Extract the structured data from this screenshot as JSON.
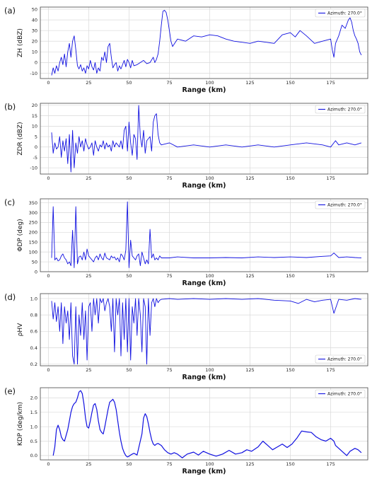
{
  "colors": {
    "series": "#1010e0",
    "grid": "#d9d9d9",
    "axis": "#444444"
  },
  "x_axis": {
    "label": "Range (km)",
    "ticks": [
      "0",
      "25",
      "50",
      "75",
      "100",
      "125",
      "150",
      "175"
    ],
    "range": [
      -5,
      198
    ]
  },
  "chart_data": [
    {
      "type": "line",
      "panel_label": "(a)",
      "ylabel": "ZH (dBZ)",
      "xlabel": "Range (km)",
      "legend": "Azimuth: 270.0°",
      "legend_position": "top-right",
      "grid": true,
      "ylim": [
        -15,
        52
      ],
      "yticks": [
        -10,
        0,
        10,
        20,
        30,
        40,
        50
      ],
      "series": [
        {
          "name": "Azimuth: 270.0°",
          "x": [
            2,
            3,
            4,
            5,
            6,
            7,
            8,
            9,
            10,
            11,
            12,
            13,
            14,
            15,
            16,
            17,
            18,
            19,
            20,
            21,
            22,
            23,
            24,
            25,
            26,
            27,
            28,
            29,
            30,
            31,
            32,
            33,
            34,
            35,
            36,
            37,
            38,
            39,
            40,
            41,
            42,
            43,
            44,
            45,
            46,
            47,
            48,
            49,
            50,
            51,
            52,
            53,
            55,
            57,
            59,
            61,
            63,
            65,
            66,
            67,
            68,
            69,
            70,
            71,
            72,
            73,
            74,
            75,
            76,
            77,
            80,
            85,
            90,
            95,
            100,
            105,
            110,
            115,
            120,
            125,
            130,
            135,
            140,
            145,
            150,
            153,
            156,
            160,
            165,
            170,
            175,
            176,
            177,
            178,
            180,
            182,
            184,
            186,
            187,
            188,
            189,
            190,
            191,
            192,
            193,
            194
          ],
          "y": [
            -12,
            -5,
            -10,
            -3,
            -8,
            0,
            5,
            -2,
            8,
            -4,
            10,
            18,
            5,
            20,
            25,
            12,
            -3,
            -6,
            -2,
            -8,
            -5,
            -10,
            -3,
            -6,
            2,
            -4,
            -7,
            0,
            -10,
            -5,
            -8,
            5,
            2,
            10,
            0,
            15,
            18,
            5,
            -5,
            -2,
            0,
            -8,
            -3,
            -6,
            -2,
            2,
            -4,
            3,
            0,
            -5,
            2,
            -3,
            -2,
            0,
            2,
            -1,
            0,
            5,
            0,
            3,
            8,
            20,
            35,
            48,
            49,
            47,
            40,
            30,
            20,
            15,
            22,
            20,
            25,
            24,
            26,
            25,
            22,
            20,
            19,
            18,
            20,
            19,
            18,
            26,
            28,
            24,
            30,
            25,
            18,
            20,
            22,
            12,
            5,
            18,
            25,
            35,
            32,
            40,
            42,
            38,
            30,
            25,
            22,
            18,
            10,
            7
          ]
        }
      ]
    },
    {
      "type": "line",
      "panel_label": "(b)",
      "ylabel": "ZDR (dBZ)",
      "xlabel": "Range (km)",
      "legend": "Azimuth: 270.0°",
      "legend_position": "top-right",
      "grid": true,
      "ylim": [
        -13,
        21
      ],
      "yticks": [
        -10,
        -5,
        0,
        5,
        10,
        15,
        20
      ],
      "series": [
        {
          "name": "Azimuth: 270.0°",
          "x": [
            2,
            3,
            4,
            5,
            6,
            7,
            8,
            9,
            10,
            11,
            12,
            13,
            14,
            15,
            16,
            17,
            18,
            19,
            20,
            21,
            22,
            23,
            24,
            25,
            26,
            27,
            28,
            29,
            30,
            31,
            32,
            33,
            34,
            35,
            36,
            37,
            38,
            39,
            40,
            41,
            42,
            43,
            44,
            45,
            46,
            47,
            48,
            49,
            50,
            51,
            52,
            53,
            54,
            55,
            56,
            57,
            58,
            59,
            60,
            61,
            62,
            63,
            64,
            65,
            66,
            67,
            68,
            69,
            70,
            75,
            80,
            90,
            100,
            110,
            120,
            130,
            140,
            150,
            160,
            170,
            175,
            178,
            180,
            185,
            190,
            194
          ],
          "y": [
            7,
            -3,
            2,
            -1,
            0,
            5,
            -5,
            3,
            -2,
            4,
            -8,
            6,
            -12,
            8,
            -10,
            2,
            -3,
            5,
            0,
            3,
            -2,
            4,
            1,
            -1,
            0,
            2,
            -4,
            3,
            0,
            -2,
            1,
            0,
            3,
            -1,
            2,
            0,
            1,
            -2,
            3,
            0,
            2,
            1,
            0,
            3,
            -1,
            8,
            10,
            -2,
            12,
            2,
            -4,
            6,
            4,
            -6,
            20,
            5,
            0,
            8,
            -3,
            3,
            4,
            5,
            -2,
            12,
            15,
            16,
            6,
            2,
            1,
            2,
            0,
            1,
            0,
            1,
            0,
            1,
            0,
            1,
            2,
            1,
            0,
            3,
            1,
            2,
            1,
            2
          ]
        }
      ]
    },
    {
      "type": "line",
      "panel_label": "(c)",
      "ylabel": "ΦDP (deg)",
      "xlabel": "Range (km)",
      "legend": "Azimuth: 270.0°",
      "legend_position": "top-right",
      "grid": true,
      "ylim": [
        0,
        370
      ],
      "yticks": [
        0,
        50,
        100,
        150,
        200,
        250,
        300,
        350
      ],
      "series": [
        {
          "name": "Azimuth: 270.0°",
          "x": [
            2,
            3,
            4,
            5,
            6,
            7,
            8,
            9,
            10,
            11,
            12,
            13,
            14,
            15,
            16,
            17,
            18,
            19,
            20,
            21,
            22,
            23,
            24,
            25,
            26,
            27,
            28,
            29,
            30,
            31,
            32,
            33,
            34,
            35,
            36,
            37,
            38,
            39,
            40,
            41,
            42,
            43,
            44,
            45,
            46,
            47,
            48,
            49,
            50,
            51,
            52,
            53,
            54,
            55,
            56,
            57,
            58,
            59,
            60,
            61,
            62,
            63,
            64,
            65,
            66,
            67,
            68,
            69,
            70,
            75,
            80,
            90,
            100,
            110,
            120,
            130,
            140,
            150,
            160,
            170,
            175,
            177,
            180,
            185,
            190,
            194
          ],
          "y": [
            70,
            330,
            60,
            70,
            55,
            60,
            80,
            90,
            70,
            60,
            40,
            50,
            30,
            210,
            20,
            330,
            40,
            75,
            80,
            60,
            100,
            60,
            115,
            80,
            70,
            60,
            50,
            70,
            80,
            60,
            90,
            70,
            60,
            95,
            70,
            65,
            60,
            80,
            70,
            75,
            60,
            70,
            50,
            90,
            80,
            60,
            110,
            355,
            20,
            160,
            80,
            70,
            60,
            80,
            90,
            30,
            100,
            70,
            40,
            60,
            40,
            215,
            70,
            90,
            60,
            70,
            60,
            80,
            70,
            70,
            75,
            70,
            70,
            72,
            70,
            75,
            72,
            75,
            72,
            78,
            80,
            95,
            72,
            75,
            72,
            70
          ]
        }
      ]
    },
    {
      "type": "line",
      "panel_label": "(d)",
      "ylabel": "ρHV",
      "xlabel": "Range (km)",
      "legend": "Azimuth: 270.0°",
      "legend_position": "bottom-right",
      "grid": true,
      "ylim": [
        0.18,
        1.06
      ],
      "yticks": [
        0.2,
        0.4,
        0.6,
        0.8,
        1.0
      ],
      "series": [
        {
          "name": "Azimuth: 270.0°",
          "x": [
            2,
            3,
            4,
            5,
            6,
            7,
            8,
            9,
            10,
            11,
            12,
            13,
            14,
            15,
            16,
            17,
            18,
            19,
            20,
            21,
            22,
            23,
            24,
            25,
            26,
            27,
            28,
            29,
            30,
            31,
            32,
            33,
            34,
            35,
            36,
            37,
            38,
            39,
            40,
            41,
            42,
            43,
            44,
            45,
            46,
            47,
            48,
            49,
            50,
            51,
            52,
            53,
            54,
            55,
            56,
            57,
            58,
            59,
            60,
            61,
            62,
            63,
            64,
            65,
            66,
            67,
            68,
            69,
            70,
            75,
            80,
            90,
            100,
            110,
            120,
            130,
            140,
            150,
            155,
            160,
            165,
            170,
            175,
            177,
            180,
            185,
            190,
            194
          ],
          "y": [
            0.97,
            0.75,
            0.95,
            0.72,
            0.9,
            0.6,
            0.95,
            0.45,
            0.9,
            0.7,
            0.85,
            0.5,
            0.95,
            0.3,
            0.2,
            0.9,
            0.2,
            0.8,
            0.55,
            0.95,
            0.5,
            0.85,
            0.25,
            0.9,
            0.95,
            0.6,
            1.0,
            0.8,
            1.0,
            0.7,
            1.0,
            0.95,
            1.0,
            0.85,
            0.95,
            1.0,
            0.9,
            0.6,
            1.0,
            0.35,
            1.0,
            0.8,
            1.0,
            0.3,
            0.95,
            0.5,
            1.0,
            0.35,
            1.0,
            0.25,
            0.9,
            0.7,
            1.0,
            0.55,
            1.0,
            0.8,
            0.35,
            1.0,
            0.9,
            0.2,
            1.0,
            0.55,
            0.95,
            1.0,
            0.9,
            1.0,
            0.95,
            0.98,
            0.99,
            1.0,
            0.99,
            1.0,
            0.99,
            1.0,
            0.99,
            1.0,
            0.98,
            0.97,
            0.94,
            0.99,
            0.96,
            0.98,
            0.99,
            0.82,
            0.99,
            0.98,
            1.0,
            0.99
          ]
        }
      ]
    },
    {
      "type": "line",
      "panel_label": "(e)",
      "ylabel": "KDP (deg/km)",
      "xlabel": "Range (km)",
      "legend": "Azimuth: 270.0°",
      "legend_position": "top-right",
      "grid": true,
      "ylim": [
        -0.15,
        2.35
      ],
      "yticks": [
        0.0,
        0.5,
        1.0,
        1.5,
        2.0
      ],
      "series": [
        {
          "name": "Azimuth: 270.0°",
          "x": [
            3,
            4,
            5,
            6,
            7,
            8,
            9,
            10,
            11,
            12,
            13,
            14,
            15,
            16,
            17,
            18,
            19,
            20,
            21,
            22,
            23,
            24,
            25,
            26,
            27,
            28,
            29,
            30,
            31,
            32,
            33,
            34,
            35,
            36,
            37,
            38,
            39,
            40,
            41,
            42,
            43,
            44,
            45,
            46,
            47,
            48,
            49,
            50,
            51,
            52,
            53,
            54,
            55,
            58,
            59,
            60,
            61,
            62,
            63,
            64,
            65,
            66,
            67,
            68,
            70,
            72,
            74,
            76,
            78,
            80,
            83,
            86,
            90,
            93,
            96,
            100,
            104,
            108,
            112,
            116,
            120,
            123,
            126,
            130,
            133,
            136,
            139,
            142,
            145,
            148,
            151,
            154,
            157,
            160,
            163,
            166,
            169,
            172,
            175,
            177,
            178,
            185,
            187,
            190,
            192,
            194
          ],
          "y": [
            0.0,
            0.3,
            0.9,
            1.05,
            0.9,
            0.65,
            0.55,
            0.5,
            0.7,
            0.9,
            1.2,
            1.5,
            1.7,
            1.8,
            1.85,
            2.0,
            2.2,
            2.25,
            2.15,
            1.8,
            1.3,
            1.0,
            0.95,
            1.2,
            1.5,
            1.75,
            1.8,
            1.6,
            1.2,
            0.9,
            0.8,
            0.75,
            1.0,
            1.3,
            1.6,
            1.85,
            1.9,
            1.95,
            1.85,
            1.6,
            1.2,
            0.8,
            0.5,
            0.25,
            0.1,
            0.0,
            -0.05,
            -0.02,
            0.02,
            0.05,
            0.08,
            0.05,
            0.02,
            0.75,
            1.3,
            1.45,
            1.35,
            1.1,
            0.8,
            0.55,
            0.4,
            0.35,
            0.4,
            0.42,
            0.35,
            0.2,
            0.1,
            0.05,
            0.1,
            0.05,
            -0.08,
            0.05,
            0.12,
            0.02,
            0.15,
            0.05,
            -0.02,
            0.05,
            0.18,
            0.05,
            0.1,
            0.2,
            0.15,
            0.3,
            0.5,
            0.35,
            0.2,
            0.3,
            0.4,
            0.28,
            0.4,
            0.6,
            0.85,
            0.82,
            0.8,
            0.65,
            0.55,
            0.5,
            0.6,
            0.5,
            0.35,
            0.0,
            0.15,
            0.25,
            0.2,
            0.1
          ]
        }
      ]
    }
  ]
}
